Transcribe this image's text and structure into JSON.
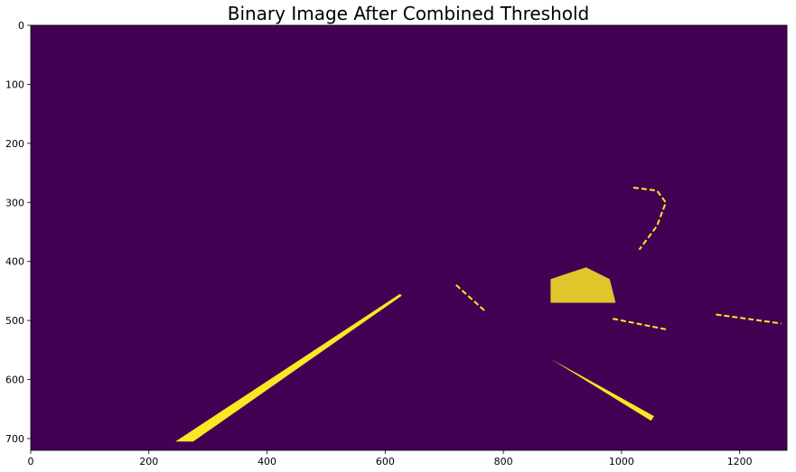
{
  "chart_data": {
    "type": "heatmap",
    "title": "Binary Image After Combined Threshold",
    "xlabel": "",
    "ylabel": "",
    "xlim": [
      0,
      1280
    ],
    "ylim": [
      720,
      0
    ],
    "x_ticks": [
      0,
      200,
      400,
      600,
      800,
      1000,
      1200
    ],
    "y_ticks": [
      0,
      100,
      200,
      300,
      400,
      500,
      600,
      700
    ],
    "colormap": "viridis",
    "background_color": "#440154",
    "foreground_color": "#fde725",
    "image_size": {
      "width": 1280,
      "height": 720
    },
    "features": [
      {
        "name": "left-lane-line",
        "shape": "band",
        "points": [
          [
            245,
            705
          ],
          [
            625,
            455
          ],
          [
            628,
            458
          ],
          [
            275,
            705
          ]
        ]
      },
      {
        "name": "right-lane-line",
        "shape": "band",
        "points": [
          [
            880,
            565
          ],
          [
            1055,
            662
          ],
          [
            1050,
            670
          ],
          [
            888,
            570
          ]
        ]
      },
      {
        "name": "vehicle-blob",
        "shape": "blob",
        "points": [
          [
            880,
            430
          ],
          [
            940,
            410
          ],
          [
            980,
            430
          ],
          [
            990,
            470
          ],
          [
            880,
            470
          ]
        ]
      },
      {
        "name": "right-edge-streak",
        "shape": "line",
        "points": [
          [
            1160,
            490
          ],
          [
            1270,
            505
          ]
        ]
      },
      {
        "name": "mid-right-streak",
        "shape": "line",
        "points": [
          [
            985,
            497
          ],
          [
            1075,
            515
          ]
        ]
      },
      {
        "name": "upper-right-curve",
        "shape": "line",
        "points": [
          [
            1020,
            275
          ],
          [
            1060,
            280
          ],
          [
            1075,
            300
          ],
          [
            1060,
            340
          ],
          [
            1030,
            380
          ]
        ]
      },
      {
        "name": "center-dashes",
        "shape": "line",
        "points": [
          [
            720,
            440
          ],
          [
            770,
            485
          ]
        ]
      }
    ]
  }
}
